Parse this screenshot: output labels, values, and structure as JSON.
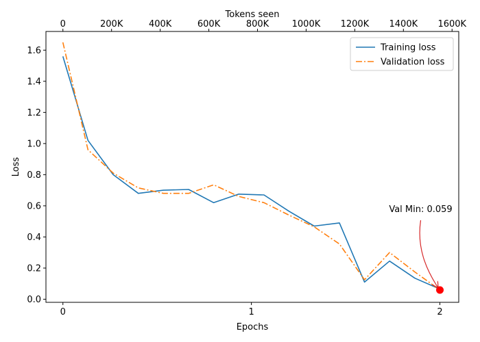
{
  "chart_data": {
    "type": "line",
    "xlabel": "Epochs",
    "ylabel": "Loss",
    "top_xlabel": "Tokens seen",
    "xlim": [
      -0.09,
      2.1
    ],
    "ylim": [
      -0.02,
      1.72
    ],
    "x_ticks": [
      0,
      1,
      2
    ],
    "x_tick_labels": [
      "0",
      "1",
      "2"
    ],
    "y_ticks": [
      0.0,
      0.2,
      0.4,
      0.6,
      0.8,
      1.0,
      1.2,
      1.4,
      1.6
    ],
    "y_tick_labels": [
      "0.0",
      "0.2",
      "0.4",
      "0.6",
      "0.8",
      "1.0",
      "1.2",
      "1.4",
      "1.6"
    ],
    "top_axis": {
      "ticks": [
        0,
        200000,
        400000,
        600000,
        800000,
        1000000,
        1200000,
        1400000,
        1600000
      ],
      "tick_labels": [
        "0",
        "200K",
        "400K",
        "600K",
        "800K",
        "1000K",
        "1200K",
        "1400K",
        "1600K"
      ],
      "max_tokens": 1550000,
      "max_epoch": 2.0
    },
    "legend_position": "top-right",
    "series": [
      {
        "name": "Training loss",
        "color": "#1f77b4",
        "style": "solid",
        "x": [
          0,
          0.133,
          0.267,
          0.4,
          0.533,
          0.667,
          0.8,
          0.933,
          1.067,
          1.2,
          1.333,
          1.467,
          1.6,
          1.733,
          1.867,
          2.0
        ],
        "y": [
          1.56,
          1.02,
          0.8,
          0.68,
          0.7,
          0.705,
          0.62,
          0.675,
          0.67,
          0.565,
          0.47,
          0.49,
          0.11,
          0.245,
          0.135,
          0.065
        ]
      },
      {
        "name": "Validation loss",
        "color": "#ff7f0e",
        "style": "dashdot",
        "x": [
          0,
          0.133,
          0.267,
          0.4,
          0.533,
          0.667,
          0.8,
          0.933,
          1.067,
          1.2,
          1.333,
          1.467,
          1.6,
          1.733,
          1.867,
          2.0
        ],
        "y": [
          1.65,
          0.96,
          0.81,
          0.715,
          0.68,
          0.68,
          0.735,
          0.66,
          0.62,
          0.54,
          0.465,
          0.355,
          0.125,
          0.3,
          0.175,
          0.059
        ]
      }
    ],
    "annotation": {
      "text": "Val Min: 0.059",
      "point": {
        "x": 2.0,
        "y": 0.059
      },
      "marker_color": "#ff0000",
      "arrow_color": "#d62728"
    }
  }
}
